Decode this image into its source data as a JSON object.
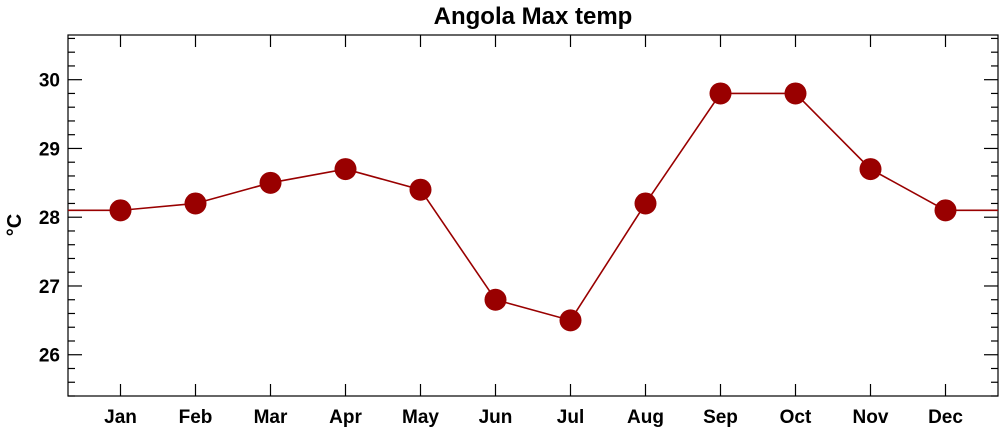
{
  "chart_data": {
    "type": "line",
    "title": "Angola Max temp",
    "xlabel": "",
    "ylabel": "°C",
    "categories": [
      "Jan",
      "Feb",
      "Mar",
      "Apr",
      "May",
      "Jun",
      "Jul",
      "Aug",
      "Sep",
      "Oct",
      "Nov",
      "Dec"
    ],
    "values": [
      28.1,
      28.2,
      28.5,
      28.7,
      28.4,
      26.8,
      26.5,
      28.2,
      29.8,
      29.8,
      28.7,
      28.1
    ],
    "ylim": [
      25.4,
      30.65
    ],
    "yticks": [
      26,
      27,
      28,
      29,
      30
    ],
    "ytick_labels": [
      "26",
      "27",
      "28",
      "29",
      "30"
    ],
    "grid": false,
    "series_color": "#990000",
    "wraparound_value": 28.1
  }
}
